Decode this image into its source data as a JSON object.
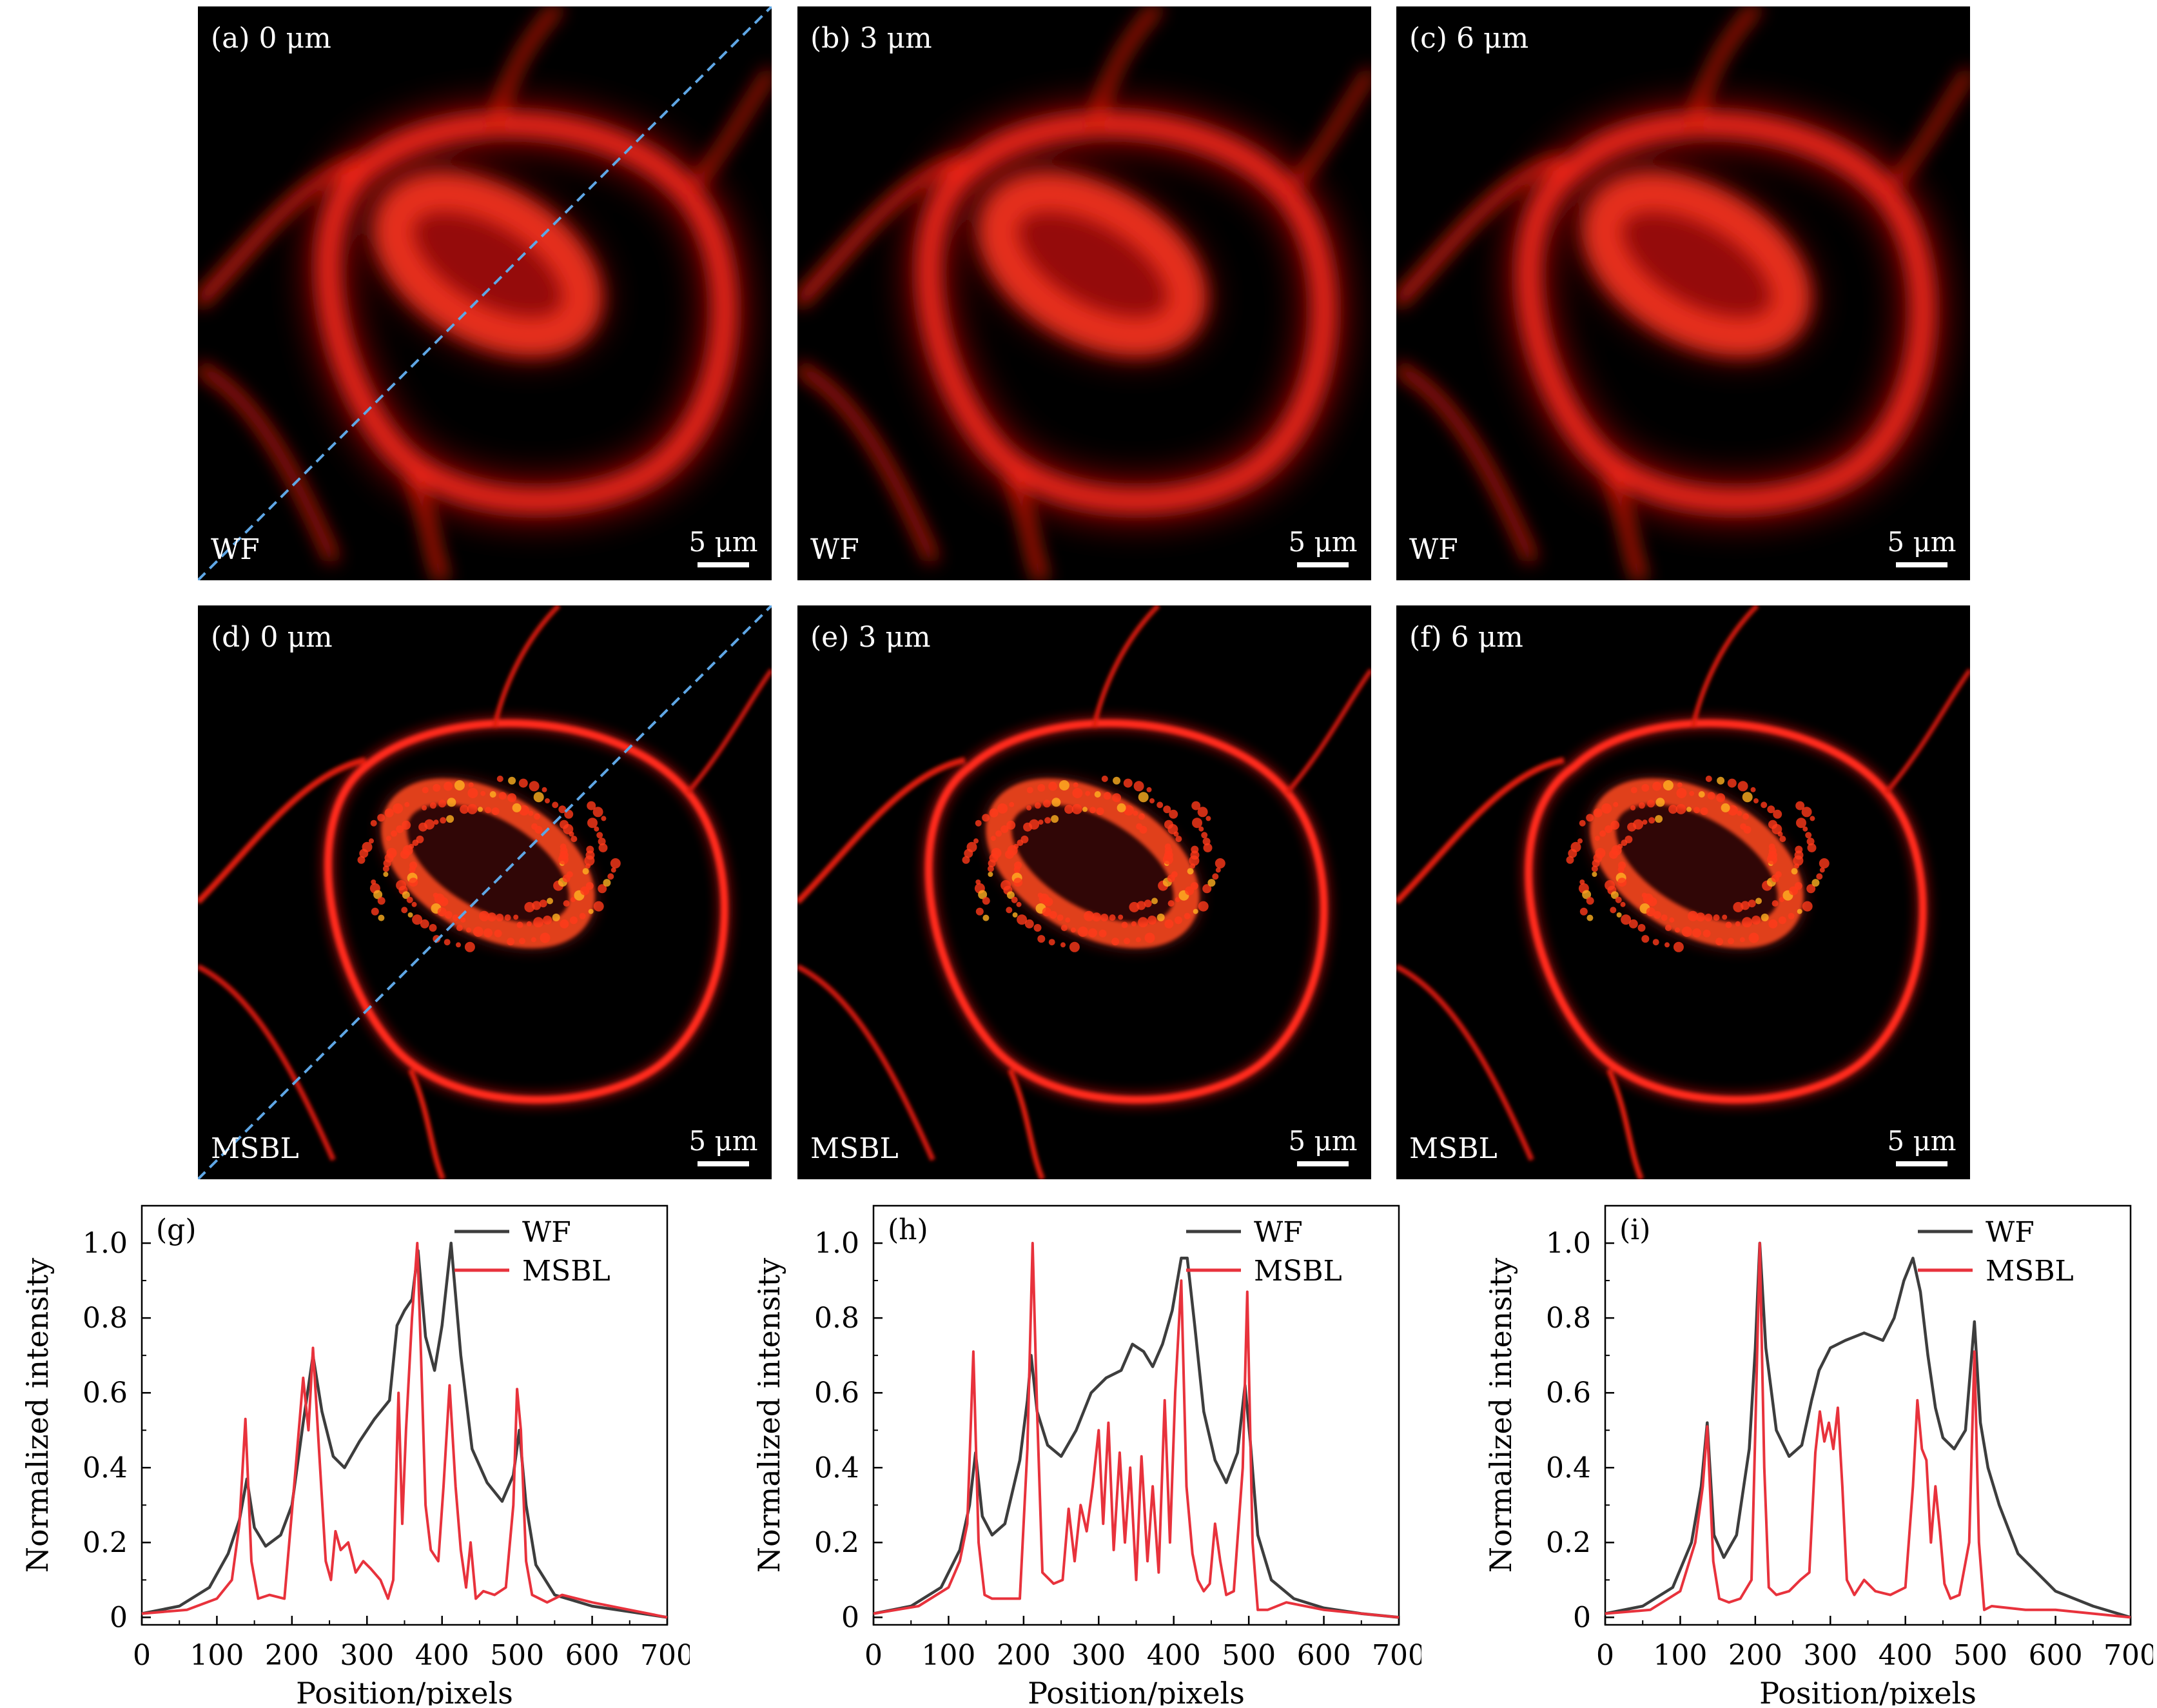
{
  "images": [
    {
      "id": "a",
      "label": "(a) 0 μm",
      "method": "WF",
      "scale": "5 μm",
      "dashed_line": true
    },
    {
      "id": "b",
      "label": "(b) 3 μm",
      "method": "WF",
      "scale": "5 μm",
      "dashed_line": false
    },
    {
      "id": "c",
      "label": "(c) 6 μm",
      "method": "WF",
      "scale": "5 μm",
      "dashed_line": false
    },
    {
      "id": "d",
      "label": "(d) 0 μm",
      "method": "MSBL",
      "scale": "5 μm",
      "dashed_line": true
    },
    {
      "id": "e",
      "label": "(e) 3 μm",
      "method": "MSBL",
      "scale": "5 μm",
      "dashed_line": false
    },
    {
      "id": "f",
      "label": "(f) 6 μm",
      "method": "MSBL",
      "scale": "5 μm",
      "dashed_line": false
    }
  ],
  "colors": {
    "wf": "#3d3d3d",
    "msbl": "#e8323c",
    "dashed": "#5fa7e6"
  },
  "chart_data": [
    {
      "type": "line",
      "panel_label": "(g)",
      "xlabel": "Position/pixels",
      "ylabel": "Normalized intensity",
      "xlim": [
        0,
        700
      ],
      "ylim": [
        -0.02,
        1.1
      ],
      "xticks": [
        0,
        100,
        200,
        300,
        400,
        500,
        600,
        700
      ],
      "yticks": [
        0,
        0.2,
        0.4,
        0.6,
        0.8,
        1.0
      ],
      "ytick_labels": [
        "0",
        "0.2",
        "0.4",
        "0.6",
        "0.8",
        "1.0"
      ],
      "legend": "top-right",
      "series": [
        {
          "name": "WF",
          "color": "#3d3d3d",
          "x": [
            0,
            50,
            90,
            115,
            130,
            140,
            150,
            165,
            185,
            200,
            215,
            228,
            240,
            255,
            270,
            290,
            310,
            330,
            340,
            350,
            360,
            368,
            378,
            390,
            400,
            412,
            425,
            440,
            460,
            480,
            495,
            503,
            512,
            525,
            550,
            600,
            650,
            700
          ],
          "y": [
            0.01,
            0.03,
            0.08,
            0.17,
            0.26,
            0.37,
            0.24,
            0.19,
            0.22,
            0.3,
            0.52,
            0.7,
            0.55,
            0.43,
            0.4,
            0.47,
            0.53,
            0.58,
            0.78,
            0.82,
            0.85,
            0.98,
            0.75,
            0.66,
            0.78,
            1.0,
            0.7,
            0.45,
            0.36,
            0.31,
            0.38,
            0.5,
            0.3,
            0.14,
            0.06,
            0.03,
            0.015,
            0.0
          ]
        },
        {
          "name": "MSBL",
          "color": "#e8323c",
          "x": [
            0,
            60,
            100,
            120,
            130,
            138,
            146,
            155,
            170,
            190,
            205,
            215,
            222,
            228,
            236,
            245,
            252,
            258,
            265,
            275,
            285,
            295,
            305,
            318,
            328,
            335,
            342,
            347,
            352,
            360,
            367,
            372,
            378,
            385,
            395,
            402,
            410,
            418,
            425,
            432,
            438,
            445,
            455,
            470,
            485,
            495,
            500,
            505,
            512,
            520,
            540,
            560,
            600,
            650,
            700
          ],
          "y": [
            0.01,
            0.02,
            0.05,
            0.1,
            0.25,
            0.53,
            0.15,
            0.05,
            0.06,
            0.05,
            0.4,
            0.64,
            0.5,
            0.72,
            0.45,
            0.15,
            0.1,
            0.23,
            0.18,
            0.2,
            0.12,
            0.15,
            0.13,
            0.1,
            0.05,
            0.1,
            0.6,
            0.25,
            0.5,
            0.8,
            1.0,
            0.7,
            0.3,
            0.18,
            0.15,
            0.35,
            0.62,
            0.35,
            0.18,
            0.08,
            0.2,
            0.05,
            0.07,
            0.06,
            0.08,
            0.3,
            0.61,
            0.5,
            0.15,
            0.06,
            0.04,
            0.06,
            0.04,
            0.02,
            0.0
          ]
        }
      ]
    },
    {
      "type": "line",
      "panel_label": "(h)",
      "xlabel": "Position/pixels",
      "ylabel": "Normalized intensity",
      "xlim": [
        0,
        700
      ],
      "ylim": [
        -0.02,
        1.1
      ],
      "xticks": [
        0,
        100,
        200,
        300,
        400,
        500,
        600,
        700
      ],
      "yticks": [
        0,
        0.2,
        0.4,
        0.6,
        0.8,
        1.0
      ],
      "ytick_labels": [
        "0",
        "0.2",
        "0.4",
        "0.6",
        "0.8",
        "1.0"
      ],
      "legend": "top-right",
      "series": [
        {
          "name": "WF",
          "color": "#3d3d3d",
          "x": [
            0,
            50,
            90,
            115,
            128,
            136,
            145,
            158,
            175,
            195,
            205,
            210,
            218,
            232,
            250,
            270,
            290,
            310,
            330,
            345,
            360,
            372,
            385,
            398,
            410,
            418,
            428,
            440,
            455,
            470,
            485,
            495,
            502,
            512,
            530,
            560,
            600,
            650,
            700
          ],
          "y": [
            0.01,
            0.03,
            0.08,
            0.18,
            0.3,
            0.44,
            0.27,
            0.22,
            0.25,
            0.42,
            0.58,
            0.7,
            0.55,
            0.46,
            0.43,
            0.5,
            0.6,
            0.64,
            0.66,
            0.73,
            0.71,
            0.67,
            0.73,
            0.82,
            0.96,
            0.96,
            0.78,
            0.55,
            0.42,
            0.36,
            0.44,
            0.62,
            0.47,
            0.22,
            0.1,
            0.05,
            0.025,
            0.01,
            0.0
          ]
        },
        {
          "name": "MSBL",
          "color": "#e8323c",
          "x": [
            0,
            60,
            100,
            115,
            125,
            133,
            140,
            148,
            158,
            175,
            195,
            205,
            212,
            218,
            225,
            240,
            252,
            260,
            268,
            276,
            284,
            292,
            300,
            306,
            313,
            320,
            328,
            335,
            342,
            350,
            357,
            365,
            372,
            380,
            388,
            395,
            402,
            410,
            417,
            425,
            432,
            440,
            448,
            455,
            462,
            470,
            480,
            492,
            498,
            505,
            512,
            525,
            550,
            600,
            650,
            700
          ],
          "y": [
            0.01,
            0.03,
            0.08,
            0.15,
            0.25,
            0.71,
            0.2,
            0.06,
            0.05,
            0.05,
            0.05,
            0.45,
            1.0,
            0.55,
            0.12,
            0.09,
            0.1,
            0.29,
            0.15,
            0.3,
            0.23,
            0.35,
            0.5,
            0.25,
            0.52,
            0.18,
            0.44,
            0.2,
            0.4,
            0.1,
            0.43,
            0.15,
            0.35,
            0.12,
            0.58,
            0.2,
            0.6,
            0.9,
            0.35,
            0.17,
            0.1,
            0.07,
            0.09,
            0.25,
            0.15,
            0.06,
            0.07,
            0.4,
            0.87,
            0.2,
            0.02,
            0.02,
            0.04,
            0.02,
            0.01,
            0.0
          ]
        }
      ]
    },
    {
      "type": "line",
      "panel_label": "(i)",
      "xlabel": "Position/pixels",
      "ylabel": "Normalized intensity",
      "xlim": [
        0,
        700
      ],
      "ylim": [
        -0.02,
        1.1
      ],
      "xticks": [
        0,
        100,
        200,
        300,
        400,
        500,
        600,
        700
      ],
      "yticks": [
        0,
        0.2,
        0.4,
        0.6,
        0.8,
        1.0
      ],
      "ytick_labels": [
        "0",
        "0.2",
        "0.4",
        "0.6",
        "0.8",
        "1.0"
      ],
      "legend": "top-right",
      "series": [
        {
          "name": "WF",
          "color": "#3d3d3d",
          "x": [
            0,
            50,
            90,
            115,
            128,
            136,
            145,
            158,
            175,
            192,
            200,
            206,
            214,
            228,
            245,
            262,
            275,
            285,
            300,
            320,
            345,
            370,
            385,
            398,
            410,
            420,
            430,
            440,
            450,
            465,
            480,
            492,
            500,
            510,
            525,
            550,
            600,
            650,
            700
          ],
          "y": [
            0.01,
            0.03,
            0.08,
            0.2,
            0.35,
            0.52,
            0.22,
            0.16,
            0.22,
            0.45,
            0.72,
            1.0,
            0.72,
            0.5,
            0.43,
            0.46,
            0.58,
            0.66,
            0.72,
            0.74,
            0.76,
            0.74,
            0.8,
            0.9,
            0.96,
            0.87,
            0.7,
            0.56,
            0.48,
            0.45,
            0.5,
            0.79,
            0.52,
            0.4,
            0.3,
            0.17,
            0.07,
            0.03,
            0.0
          ]
        },
        {
          "name": "MSBL",
          "color": "#e8323c",
          "x": [
            0,
            60,
            100,
            120,
            130,
            136,
            144,
            152,
            165,
            180,
            195,
            200,
            206,
            212,
            218,
            228,
            245,
            260,
            272,
            280,
            286,
            292,
            298,
            304,
            310,
            316,
            322,
            332,
            345,
            360,
            380,
            400,
            410,
            416,
            422,
            428,
            434,
            440,
            446,
            452,
            460,
            472,
            485,
            492,
            498,
            505,
            515,
            560,
            600,
            650,
            700
          ],
          "y": [
            0.01,
            0.02,
            0.07,
            0.2,
            0.35,
            0.51,
            0.15,
            0.05,
            0.04,
            0.05,
            0.1,
            0.5,
            1.0,
            0.4,
            0.08,
            0.06,
            0.07,
            0.1,
            0.12,
            0.44,
            0.55,
            0.47,
            0.52,
            0.45,
            0.56,
            0.35,
            0.1,
            0.06,
            0.1,
            0.07,
            0.06,
            0.08,
            0.35,
            0.58,
            0.45,
            0.42,
            0.2,
            0.35,
            0.23,
            0.09,
            0.05,
            0.06,
            0.2,
            0.71,
            0.2,
            0.02,
            0.03,
            0.02,
            0.02,
            0.01,
            0.0
          ]
        }
      ]
    }
  ]
}
